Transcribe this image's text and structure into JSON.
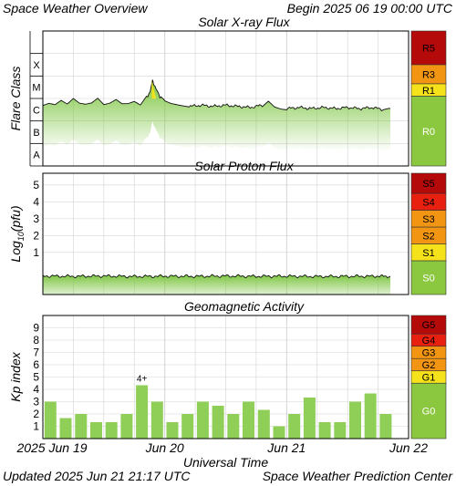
{
  "header": {
    "title": "Space Weather Overview",
    "begin": "Begin 2025 06 19 00:00 UTC"
  },
  "footer": {
    "updated": "Updated 2025 Jun 21 21:17 UTC",
    "center": "Space Weather Prediction Center"
  },
  "colors": {
    "plot_bg": "#ffffff",
    "grid": "#d3d3d3",
    "bar_green": "#8fcf57",
    "fill_green": "#7cc540",
    "scale_green": "#8cc83f",
    "level_low": "#f5e21a",
    "level_mid": "#f29513",
    "level_high": "#e8200f",
    "level_extreme": "#b40a0a"
  },
  "x_axis": {
    "title": "Universal Time",
    "tick_labels": [
      "2025 Jun 19",
      "Jun 20",
      "Jun 21",
      "Jun 22"
    ]
  },
  "chart_data": [
    {
      "type": "area",
      "title": "Solar X-ray Flux",
      "ylabel": "Flare Class",
      "y_tick_labels": [
        "A",
        "B",
        "C",
        "M",
        "X"
      ],
      "ylim": [
        -8.5,
        -2.5
      ],
      "x_range_days": [
        0,
        3
      ],
      "series": [
        {
          "x": [
            0.0,
            0.05,
            0.1,
            0.15,
            0.2,
            0.25,
            0.3,
            0.35,
            0.4,
            0.45,
            0.5,
            0.55,
            0.6,
            0.65,
            0.7,
            0.75,
            0.8,
            0.85,
            0.88,
            0.9,
            0.93,
            0.96,
            1.0,
            1.05,
            1.1,
            1.15,
            1.2,
            1.3,
            1.4,
            1.5,
            1.6,
            1.7,
            1.8,
            1.85,
            1.9,
            1.95,
            2.0,
            2.1,
            2.2,
            2.3,
            2.4,
            2.5,
            2.6,
            2.7,
            2.8,
            2.85
          ],
          "y": [
            -5.85,
            -5.75,
            -5.8,
            -5.6,
            -5.75,
            -5.5,
            -5.7,
            -5.75,
            -5.7,
            -5.5,
            -5.8,
            -5.75,
            -5.6,
            -5.8,
            -5.8,
            -5.7,
            -5.85,
            -5.45,
            -5.2,
            -4.7,
            -5.1,
            -5.4,
            -5.6,
            -5.7,
            -5.75,
            -5.8,
            -5.85,
            -5.8,
            -5.85,
            -5.8,
            -5.85,
            -5.9,
            -5.8,
            -5.55,
            -5.8,
            -5.9,
            -5.95,
            -5.9,
            -5.95,
            -5.9,
            -5.95,
            -5.9,
            -5.95,
            -5.9,
            -6.0,
            -5.95
          ]
        }
      ],
      "scale": [
        {
          "label": "R5",
          "level": "extreme"
        },
        {
          "label": "R3",
          "level": "mid"
        },
        {
          "label": "R1",
          "level": "low"
        },
        {
          "label": "R0",
          "level": "none"
        }
      ]
    },
    {
      "type": "area",
      "title": "Solar Proton Flux",
      "ylabel": "Log10(pfu)",
      "y_tick_labels": [
        "1",
        "2",
        "3",
        "4",
        "5"
      ],
      "ylim": [
        -1.5,
        5.7
      ],
      "x_range_days": [
        0,
        3
      ],
      "series": [
        {
          "x": [
            0.0,
            0.25,
            0.5,
            0.75,
            1.0,
            1.25,
            1.5,
            1.75,
            2.0,
            2.25,
            2.5,
            2.75,
            2.85
          ],
          "y": [
            -0.4,
            -0.42,
            -0.4,
            -0.43,
            -0.41,
            -0.42,
            -0.4,
            -0.42,
            -0.41,
            -0.43,
            -0.42,
            -0.41,
            -0.42
          ]
        }
      ],
      "scale": [
        {
          "label": "S5",
          "level": "extreme"
        },
        {
          "label": "S4",
          "level": "high"
        },
        {
          "label": "S3",
          "level": "mid"
        },
        {
          "label": "S2",
          "level": "mid"
        },
        {
          "label": "S1",
          "level": "low"
        },
        {
          "label": "S0",
          "level": "none"
        }
      ]
    },
    {
      "type": "bar",
      "title": "Geomagnetic Activity",
      "ylabel": "Kp index",
      "y_tick_labels": [
        "1",
        "2",
        "3",
        "4",
        "5",
        "6",
        "7",
        "8",
        "9"
      ],
      "ylim": [
        0,
        10
      ],
      "categories_start_hours": [
        0,
        3,
        6,
        9,
        12,
        15,
        18,
        21,
        24,
        27,
        30,
        33,
        36,
        39,
        42,
        45,
        48,
        51,
        54,
        57,
        60,
        63,
        66,
        69
      ],
      "values": [
        3.0,
        1.67,
        2.0,
        1.33,
        1.33,
        2.0,
        4.33,
        3.0,
        1.33,
        2.0,
        3.0,
        2.67,
        2.0,
        3.0,
        2.33,
        1.0,
        2.0,
        3.33,
        1.33,
        1.33,
        3.0,
        3.67,
        2.0
      ],
      "annotations": [
        {
          "index": 6,
          "text": "4+"
        }
      ],
      "scale": [
        {
          "label": "G5",
          "level": "extreme"
        },
        {
          "label": "G4",
          "level": "high"
        },
        {
          "label": "G3",
          "level": "mid"
        },
        {
          "label": "G2",
          "level": "mid"
        },
        {
          "label": "G1",
          "level": "low"
        },
        {
          "label": "G0",
          "level": "none"
        }
      ]
    }
  ]
}
